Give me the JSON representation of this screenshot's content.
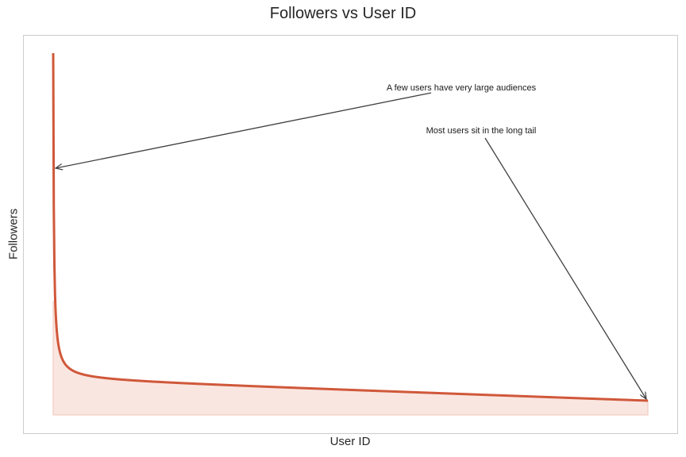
{
  "chart": {
    "title": "Followers vs User ID",
    "xlabel": "User ID",
    "ylabel": "Followers",
    "annotations": [
      {
        "text": "A few users have very large audiences",
        "points_to": "head"
      },
      {
        "text": "Most users sit in the long tail",
        "points_to": "tail"
      }
    ]
  },
  "colors": {
    "line": "#d0583a",
    "fill": "#f6d5cd",
    "arrow": "#404040",
    "frame": "#cccccc",
    "text": "#262626"
  },
  "chart_data": {
    "type": "area",
    "title": "Followers vs User ID",
    "xlabel": "User ID",
    "ylabel": "Followers",
    "description": "Power-law (long-tail) distribution: followers decrease sharply with user rank",
    "x_range": [
      1,
      1000
    ],
    "grid": false,
    "legend": null,
    "ticks_visible": false,
    "series": [
      {
        "name": "Followers",
        "model": "y ~ 1 / x^0.5 style long-tail (unlabeled axes)",
        "x": [
          1,
          2,
          3,
          5,
          10,
          20,
          50,
          100,
          200,
          400,
          600,
          800,
          1000
        ],
        "y_relative": [
          1.0,
          0.71,
          0.58,
          0.45,
          0.32,
          0.22,
          0.14,
          0.1,
          0.07,
          0.05,
          0.045,
          0.04,
          0.04
        ]
      }
    ],
    "annotations": [
      {
        "text": "A few users have very large audiences",
        "target": "head of curve (low User ID, high Followers)"
      },
      {
        "text": "Most users sit in the long tail",
        "target": "tail of curve (high User ID, low Followers)"
      }
    ]
  }
}
